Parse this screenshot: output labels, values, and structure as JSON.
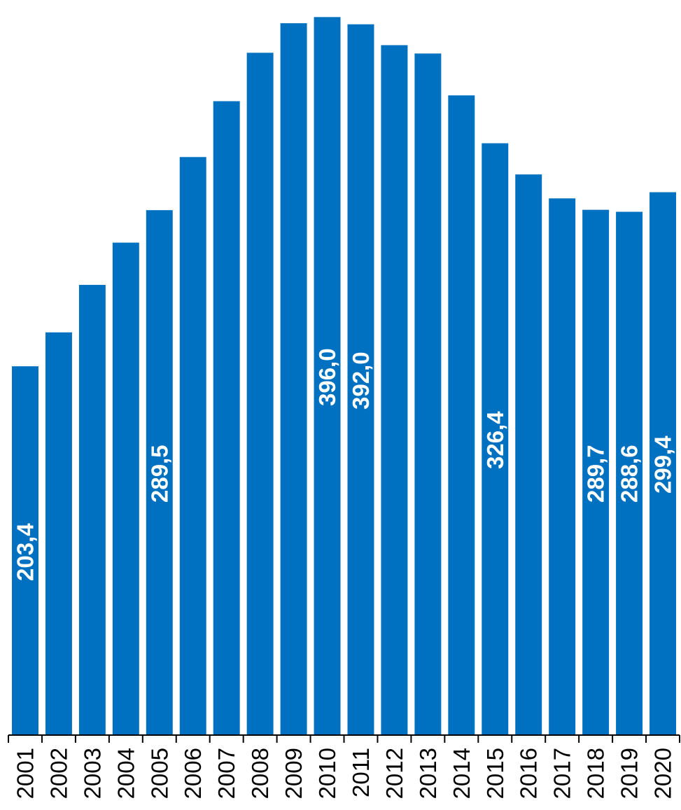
{
  "chart_data": {
    "type": "bar",
    "title": "",
    "xlabel": "",
    "ylabel": "",
    "ylim": [
      0,
      400
    ],
    "grid": false,
    "legend": "none",
    "bar_color": "#0070c0",
    "label_color": "#ffffff",
    "categories": [
      "2001",
      "2002",
      "2003",
      "2004",
      "2005",
      "2006",
      "2007",
      "2008",
      "2009",
      "2010",
      "2011",
      "2012",
      "2013",
      "2014",
      "2015",
      "2016",
      "2017",
      "2018",
      "2019",
      "2020"
    ],
    "values": [
      203.4,
      222.1,
      248.3,
      271.6,
      289.5,
      318.8,
      349.6,
      376.3,
      392.6,
      396.0,
      392.0,
      380.5,
      375.9,
      352.8,
      326.4,
      309.2,
      296.0,
      289.7,
      288.6,
      299.4
    ],
    "data_labels": [
      {
        "index": 0,
        "text": "203,4"
      },
      {
        "index": 4,
        "text": "289,5"
      },
      {
        "index": 9,
        "text": "396,0"
      },
      {
        "index": 10,
        "text": "392,0"
      },
      {
        "index": 14,
        "text": "326,4"
      },
      {
        "index": 17,
        "text": "289,7"
      },
      {
        "index": 18,
        "text": "288,6"
      },
      {
        "index": 19,
        "text": "299,4"
      }
    ]
  }
}
